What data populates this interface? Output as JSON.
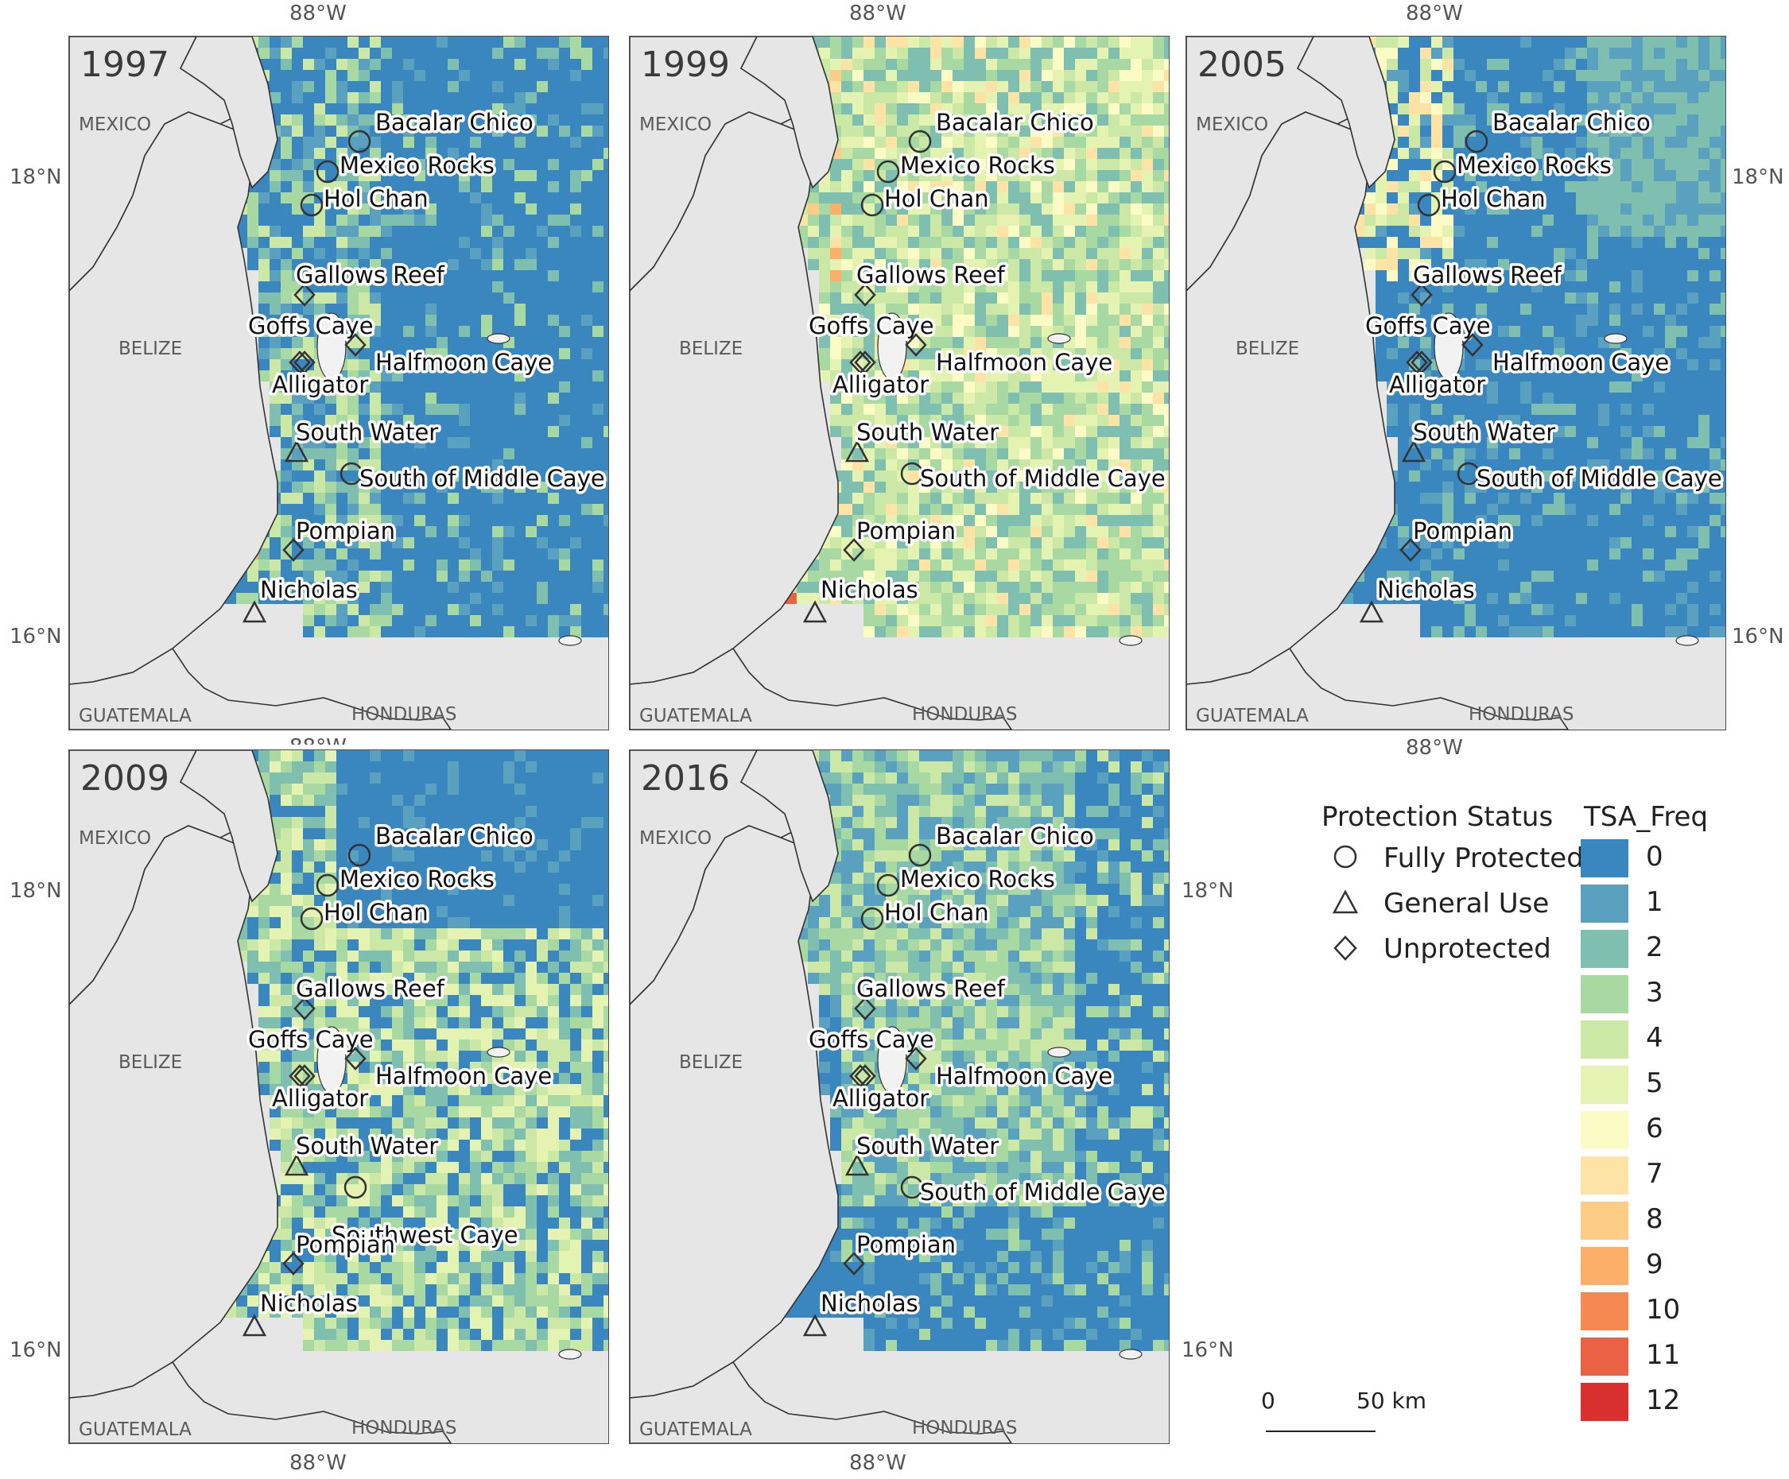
{
  "panels": [
    {
      "year": "1997",
      "variant": 0
    },
    {
      "year": "1999",
      "variant": 1
    },
    {
      "year": "2005",
      "variant": 2
    },
    {
      "year": "2009",
      "variant": 3
    },
    {
      "year": "2016",
      "variant": 4
    }
  ],
  "countries": {
    "mexico": "MEXICO",
    "belize": "BELIZE",
    "guatemala": "GUATEMALA",
    "honduras": "HONDURAS"
  },
  "axes": {
    "lon": "88°W",
    "lat_high": "18°N",
    "lat_low": "16°N"
  },
  "sites": [
    {
      "name": "Bacalar Chico",
      "status": "Fully Protected"
    },
    {
      "name": "Mexico Rocks",
      "status": "Fully Protected"
    },
    {
      "name": "Hol Chan",
      "status": "Fully Protected"
    },
    {
      "name": "Gallows Reef",
      "status": "Unprotected"
    },
    {
      "name": "Goffs Caye",
      "status": "Unprotected"
    },
    {
      "name": "Halfmoon Caye",
      "status": "Unprotected"
    },
    {
      "name": "Alligator",
      "status": "Unprotected"
    },
    {
      "name": "South Water",
      "status": "General Use"
    },
    {
      "name": "South of Middle Caye",
      "status": "Fully Protected"
    },
    {
      "name": "Southwest Caye",
      "status": "Fully Protected"
    },
    {
      "name": "Pompian",
      "status": "Unprotected"
    },
    {
      "name": "Nicholas",
      "status": "General Use"
    }
  ],
  "legend": {
    "protection_title": "Protection Status",
    "protection_items": [
      {
        "label": "Fully Protected",
        "icon": "circle-icon"
      },
      {
        "label": "General Use",
        "icon": "triangle-icon"
      },
      {
        "label": "Unprotected",
        "icon": "diamond-icon"
      }
    ],
    "freq_title": "TSA_Freq",
    "freq_items": [
      {
        "value": "0",
        "color": "#3a87c0"
      },
      {
        "value": "1",
        "color": "#5aa0bf"
      },
      {
        "value": "2",
        "color": "#7fbfb0"
      },
      {
        "value": "3",
        "color": "#a8d9a2"
      },
      {
        "value": "4",
        "color": "#cbe8a6"
      },
      {
        "value": "5",
        "color": "#e4f2b2"
      },
      {
        "value": "6",
        "color": "#fbfbc6"
      },
      {
        "value": "7",
        "color": "#fde4a6"
      },
      {
        "value": "8",
        "color": "#fdcc86"
      },
      {
        "value": "9",
        "color": "#fbaf68"
      },
      {
        "value": "10",
        "color": "#f48a52"
      },
      {
        "value": "11",
        "color": "#ea6244"
      },
      {
        "value": "12",
        "color": "#d7302f"
      }
    ]
  },
  "scale_bar": {
    "start": "0",
    "end": "50 km"
  }
}
